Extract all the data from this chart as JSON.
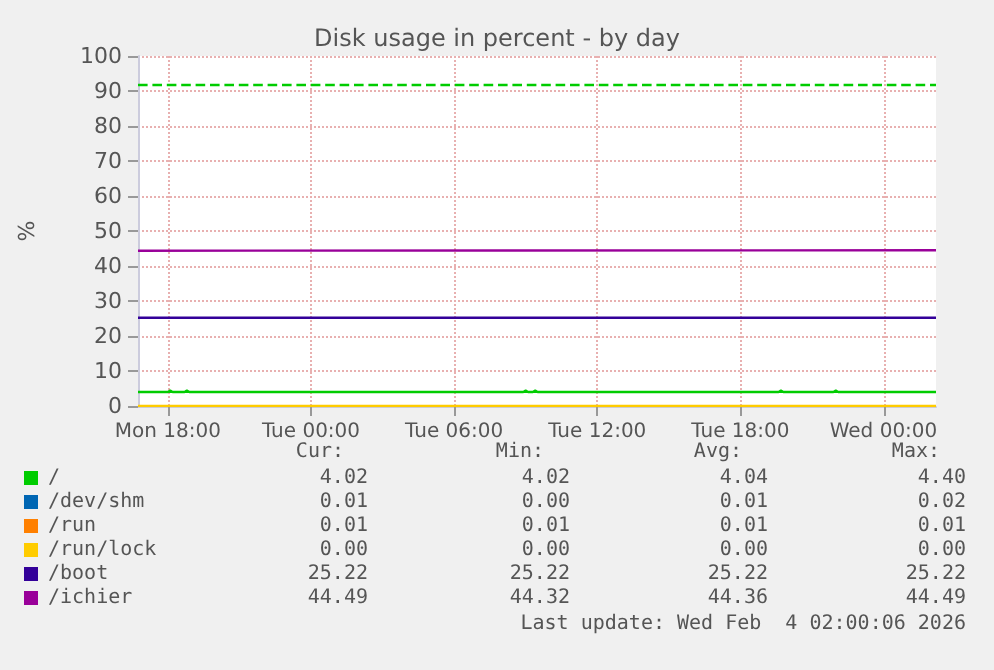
{
  "chart_data": {
    "type": "line",
    "title": "Disk usage in percent - by day",
    "ylabel": "%",
    "xlim": [
      "2026-02-02T16:45",
      "2026-02-04T02:12"
    ],
    "xticks": [
      {
        "value": "2026-02-02T18:00",
        "label": "Mon 18:00"
      },
      {
        "value": "2026-02-03T00:00",
        "label": "Tue 00:00"
      },
      {
        "value": "2026-02-03T06:00",
        "label": "Tue 06:00"
      },
      {
        "value": "2026-02-03T12:00",
        "label": "Tue 12:00"
      },
      {
        "value": "2026-02-03T18:00",
        "label": "Tue 18:00"
      },
      {
        "value": "2026-02-04T00:00",
        "label": "Wed 00:00"
      }
    ],
    "ylim": [
      0,
      100
    ],
    "yticks": [
      0,
      10,
      20,
      30,
      40,
      50,
      60,
      70,
      80,
      90,
      100
    ],
    "grid": true,
    "legend": "bottom",
    "marker": "none",
    "line_style": "solid",
    "series": [
      {
        "name": "/",
        "color": "#00cc00",
        "x": [
          "2026-02-02T16:45",
          "2026-02-02T18:00",
          "2026-02-02T18:06",
          "2026-02-02T18:12",
          "2026-02-02T18:42",
          "2026-02-02T18:48",
          "2026-02-02T18:54",
          "2026-02-03T08:54",
          "2026-02-03T09:00",
          "2026-02-03T09:06",
          "2026-02-03T09:18",
          "2026-02-03T09:24",
          "2026-02-03T09:30",
          "2026-02-03T19:36",
          "2026-02-03T19:42",
          "2026-02-03T19:48",
          "2026-02-03T21:54",
          "2026-02-03T22:00",
          "2026-02-03T22:06",
          "2026-02-04T02:12"
        ],
        "values": [
          4.02,
          4.02,
          4.4,
          4.02,
          4.02,
          4.4,
          4.02,
          4.02,
          4.4,
          4.02,
          4.02,
          4.4,
          4.02,
          4.02,
          4.4,
          4.02,
          4.02,
          4.4,
          4.02,
          4.02
        ]
      },
      {
        "name": "/dev/shm",
        "color": "#0066b3"
      },
      {
        "name": "/run",
        "color": "#ff8000"
      },
      {
        "name": "/run/lock",
        "color": "#ffcc00",
        "x": [
          "2026-02-02T16:45",
          "2026-02-04T02:12"
        ],
        "values": [
          0,
          0
        ]
      },
      {
        "name": "/boot",
        "color": "#330099",
        "x": [
          "2026-02-02T16:45",
          "2026-02-04T02:12"
        ],
        "values": [
          25.22,
          25.22
        ]
      },
      {
        "name": "/ichier",
        "color": "#990099",
        "x": [
          "2026-02-02T16:45",
          "2026-02-04T02:12"
        ],
        "values": [
          44.36,
          44.49
        ]
      }
    ],
    "ref_lines": [
      {
        "axis": "y",
        "value": 92,
        "color": "#00cc00",
        "line_style": "dashed"
      }
    ],
    "annotations": [
      "Cur:",
      "Min:",
      "Avg:",
      "Max:",
      "4.02",
      "4.02",
      "4.04",
      "4.40",
      "0.01",
      "0.00",
      "0.01",
      "0.02",
      "0.01",
      "0.01",
      "0.01",
      "0.01",
      "0.00",
      "0.00",
      "0.00",
      "0.00",
      "25.22",
      "25.22",
      "25.22",
      "25.22",
      "44.49",
      "44.32",
      "44.36",
      "44.49",
      "Last update: Wed Feb  4 02:00:06 2026"
    ]
  }
}
